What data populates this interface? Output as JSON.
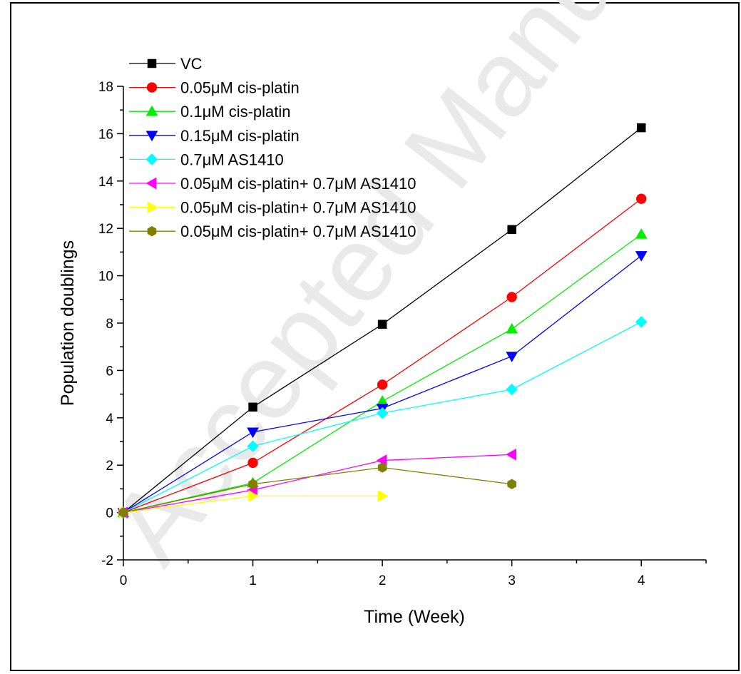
{
  "chart_data": {
    "type": "line",
    "watermark": "Accepted Manuscript",
    "xlabel": "Time (Week)",
    "ylabel": "Population doublings",
    "xlim": [
      0,
      4.5
    ],
    "ylim": [
      -2,
      18
    ],
    "xticks": [
      0,
      1,
      2,
      3,
      4
    ],
    "xticks_minor": [
      0.5,
      1.5,
      2.5,
      3.5,
      4.5
    ],
    "yticks": [
      -2,
      0,
      2,
      4,
      6,
      8,
      10,
      12,
      14,
      16,
      18
    ],
    "yticks_minor": [
      -1,
      1,
      3,
      5,
      7,
      9,
      11,
      13,
      15,
      17
    ],
    "legend_position": "top-left",
    "grid": false,
    "series": [
      {
        "name": "VC",
        "color": "#000000",
        "marker": "square",
        "x": [
          0,
          1,
          2,
          3,
          4
        ],
        "y": [
          0,
          4.45,
          7.95,
          11.95,
          16.25
        ]
      },
      {
        "name": "0.05μM cis-platin",
        "color": "#ff0000",
        "marker": "circle",
        "x": [
          0,
          1,
          2,
          3,
          4
        ],
        "y": [
          0,
          2.1,
          5.4,
          9.1,
          13.25
        ]
      },
      {
        "name": "0.1μM cis-platin",
        "color": "#00ee00",
        "marker": "triangle-up",
        "x": [
          0,
          1,
          2,
          3,
          4
        ],
        "y": [
          0,
          1.25,
          4.7,
          7.75,
          11.75
        ]
      },
      {
        "name": "0.15μM cis-platin",
        "color": "#0000ff",
        "marker": "triangle-down",
        "x": [
          0,
          1,
          2,
          3,
          4
        ],
        "y": [
          0,
          3.4,
          4.4,
          6.6,
          10.85
        ]
      },
      {
        "name": "0.7μM AS1410",
        "color": "#00ffff",
        "marker": "diamond",
        "x": [
          0,
          1,
          2,
          3,
          4
        ],
        "y": [
          0,
          2.8,
          4.2,
          5.2,
          8.05
        ]
      },
      {
        "name": "0.05μM cis-platin+ 0.7μM AS1410",
        "color": "#ff00ff",
        "marker": "triangle-left",
        "x": [
          0,
          1,
          2,
          3
        ],
        "y": [
          0,
          0.95,
          2.2,
          2.45
        ]
      },
      {
        "name": "0.05μM cis-platin+ 0.7μM AS1410",
        "color": "#ffff00",
        "marker": "triangle-right",
        "x": [
          0,
          1,
          2
        ],
        "y": [
          0,
          0.7,
          0.7
        ]
      },
      {
        "name": "0.05μM cis-platin+ 0.7μM AS1410",
        "color": "#808000",
        "marker": "hexagon",
        "x": [
          0,
          1,
          2,
          3
        ],
        "y": [
          0,
          1.2,
          1.9,
          1.2
        ]
      }
    ]
  }
}
